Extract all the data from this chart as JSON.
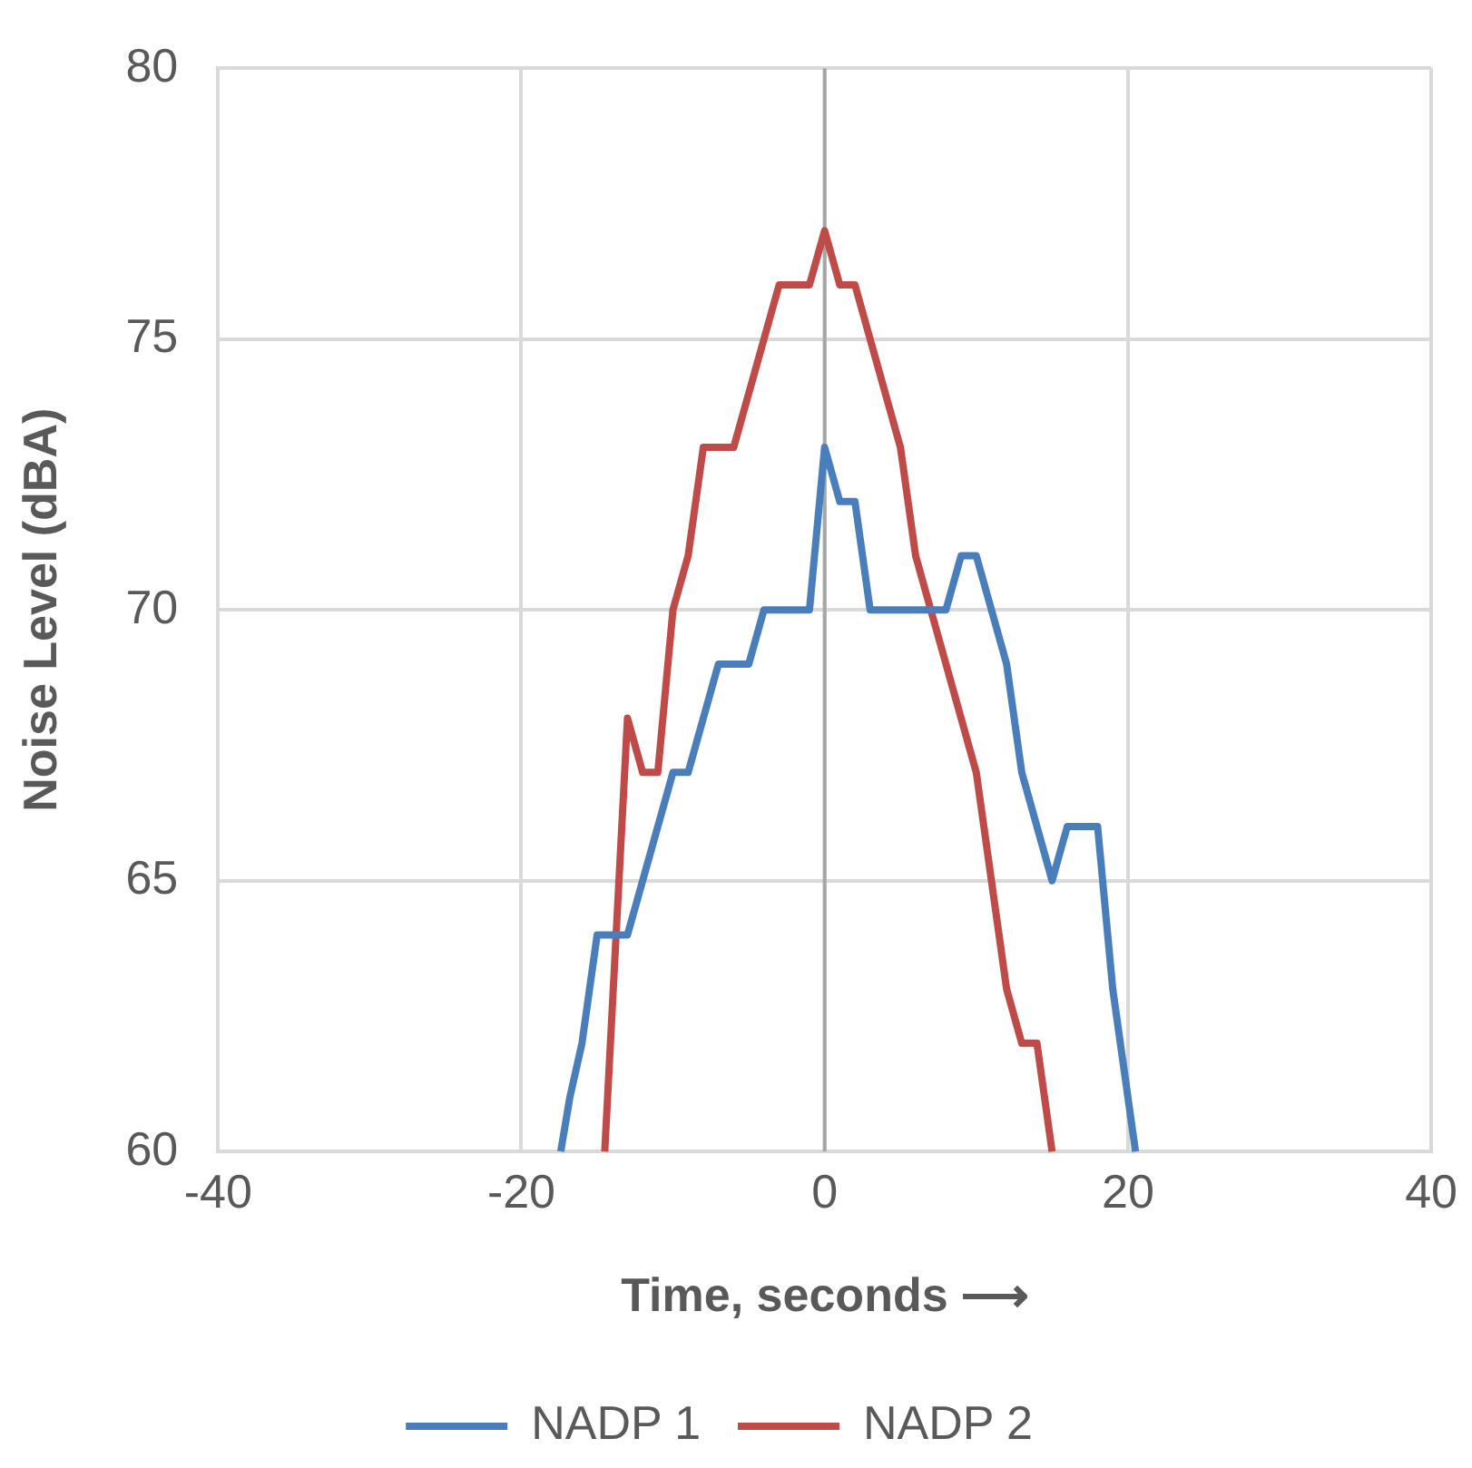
{
  "chart_data": {
    "type": "line",
    "xlabel": "Time, seconds ⟶",
    "ylabel": "Noise Level (dBA)",
    "xlim": [
      -40,
      40
    ],
    "xticks": [
      -40,
      -20,
      0,
      20,
      40
    ],
    "ylim": [
      60,
      80
    ],
    "yticks": [
      60,
      65,
      70,
      75,
      80
    ],
    "grid": true,
    "legend": "bottom",
    "marker": "none",
    "line_style": "solid",
    "ref_lines": [
      {
        "axis": "x",
        "value": 0,
        "color": "#a6a6a6"
      }
    ],
    "series": [
      {
        "name": "NADP 1",
        "color": "#4a7ebb",
        "x": [
          -17.4,
          -16.8,
          -16,
          -15,
          -13,
          -10,
          -9,
          -7,
          -5,
          -4,
          -1,
          0,
          1,
          2,
          3,
          8,
          9,
          10,
          12,
          13,
          15,
          16,
          18,
          19,
          20.5
        ],
        "values": [
          60,
          61,
          62,
          64,
          64,
          67,
          67,
          69,
          69,
          70,
          70,
          73,
          72,
          72,
          70,
          70,
          71,
          71,
          69,
          67,
          65,
          66,
          66,
          63,
          60
        ]
      },
      {
        "name": "NADP 2",
        "color": "#be4b48",
        "x": [
          -14.5,
          -13,
          -12,
          -11,
          -10,
          -9,
          -8,
          -6,
          -3,
          -1,
          0,
          1,
          2,
          5,
          6,
          10,
          12,
          13,
          14,
          15
        ],
        "values": [
          60,
          68,
          67,
          67,
          70,
          71,
          73,
          73,
          76,
          76,
          77,
          76,
          76,
          73,
          71,
          67,
          63,
          62,
          62,
          60
        ]
      }
    ]
  }
}
